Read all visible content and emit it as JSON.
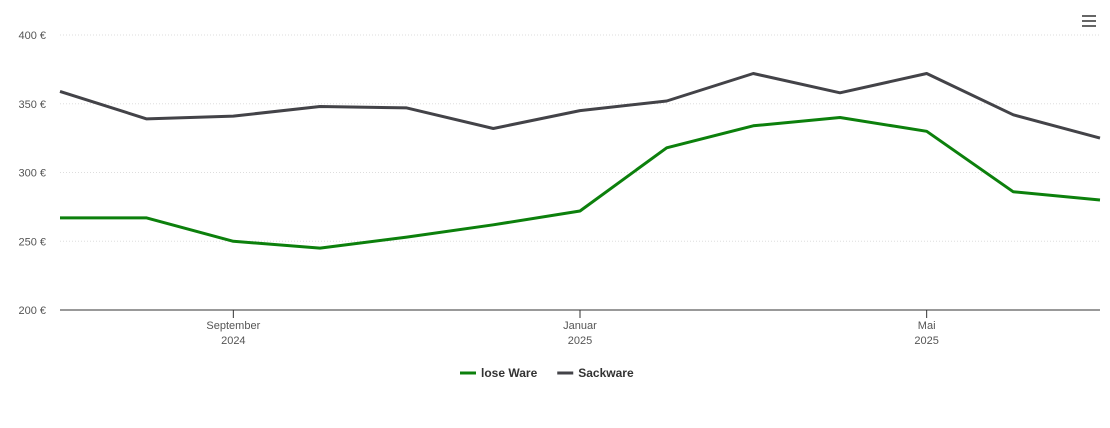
{
  "chart_data": {
    "type": "line",
    "x": [
      "2024-07",
      "2024-08",
      "2024-09",
      "2024-10",
      "2024-11",
      "2024-12",
      "2025-01",
      "2025-02",
      "2025-03",
      "2025-04",
      "2025-05",
      "2025-06",
      "2025-07"
    ],
    "series": [
      {
        "name": "lose Ware",
        "color": "#0c800c",
        "values": [
          267,
          267,
          250,
          245,
          253,
          262,
          272,
          318,
          334,
          340,
          330,
          286,
          280
        ]
      },
      {
        "name": "Sackware",
        "color": "#434348",
        "values": [
          359,
          339,
          341,
          348,
          347,
          332,
          345,
          352,
          372,
          358,
          372,
          342,
          325
        ]
      }
    ],
    "xlim": [
      "2024-07",
      "2025-07"
    ],
    "xticks": [
      {
        "value": "2024-09",
        "label": [
          "September",
          "2024"
        ]
      },
      {
        "value": "2025-01",
        "label": [
          "Januar",
          "2025"
        ]
      },
      {
        "value": "2025-05",
        "label": [
          "Mai",
          "2025"
        ]
      }
    ],
    "ylim": [
      200,
      400
    ],
    "yticks": [
      {
        "value": 200,
        "label": "200 €"
      },
      {
        "value": 250,
        "label": "250 €"
      },
      {
        "value": 300,
        "label": "300 €"
      },
      {
        "value": 350,
        "label": "350 €"
      },
      {
        "value": 400,
        "label": "400 €"
      }
    ],
    "grid": true,
    "legend": "bottom"
  }
}
